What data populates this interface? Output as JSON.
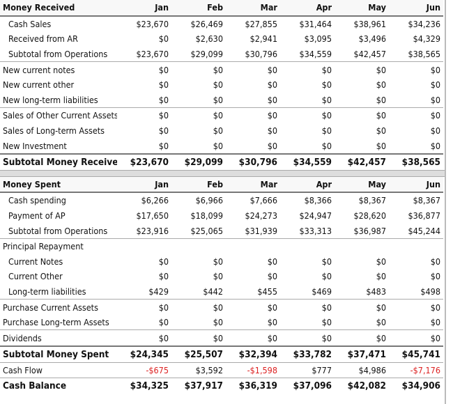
{
  "sections": [
    {
      "header": [
        "Money Received",
        "Jan",
        "Feb",
        "Mar",
        "Apr",
        "May",
        "Jun"
      ],
      "rows": [
        [
          "Cash Sales",
          "$23,670",
          "$26,469",
          "$27,855",
          "$31,464",
          "$38,961",
          "$34,236"
        ],
        [
          "Received from AR",
          "$0",
          "$2,630",
          "$2,941",
          "$3,095",
          "$3,496",
          "$4,329"
        ],
        [
          "Subtotal from Operations",
          "$23,670",
          "$29,099",
          "$30,796",
          "$34,559",
          "$42,457",
          "$38,565"
        ],
        [
          "New current notes",
          "$0",
          "$0",
          "$0",
          "$0",
          "$0",
          "$0"
        ],
        [
          "New current other",
          "$0",
          "$0",
          "$0",
          "$0",
          "$0",
          "$0"
        ],
        [
          "New long-term liabilities",
          "$0",
          "$0",
          "$0",
          "$0",
          "$0",
          "$0"
        ],
        [
          "Sales of Other Current Assets",
          "$0",
          "$0",
          "$0",
          "$0",
          "$0",
          "$0"
        ],
        [
          "Sales of Long-term Assets",
          "$0",
          "$0",
          "$0",
          "$0",
          "$0",
          "$0"
        ],
        [
          "New Investment",
          "$0",
          "$0",
          "$0",
          "$0",
          "$0",
          "$0"
        ],
        [
          "Subtotal Money Received",
          "$23,670",
          "$29,099",
          "$30,796",
          "$34,559",
          "$42,457",
          "$38,565"
        ]
      ]
    },
    {
      "header": [
        "Money Spent",
        "Jan",
        "Feb",
        "Mar",
        "Apr",
        "May",
        "Jun"
      ],
      "rows": [
        [
          "Cash spending",
          "$6,266",
          "$6,966",
          "$7,666",
          "$8,366",
          "$8,367",
          "$8,367"
        ],
        [
          "Payment of AP",
          "$17,650",
          "$18,099",
          "$24,273",
          "$24,947",
          "$28,620",
          "$36,877"
        ],
        [
          "Subtotal from Operations",
          "$23,916",
          "$25,065",
          "$31,939",
          "$33,313",
          "$36,987",
          "$45,244"
        ],
        [
          "Principal Repayment"
        ],
        [
          "Current Notes",
          "$0",
          "$0",
          "$0",
          "$0",
          "$0",
          "$0"
        ],
        [
          "Current Other",
          "$0",
          "$0",
          "$0",
          "$0",
          "$0",
          "$0"
        ],
        [
          "Long-term liabilities",
          "$429",
          "$442",
          "$455",
          "$469",
          "$483",
          "$498"
        ],
        [
          "Purchase Current Assets",
          "$0",
          "$0",
          "$0",
          "$0",
          "$0",
          "$0"
        ],
        [
          "Purchase Long-term Assets",
          "$0",
          "$0",
          "$0",
          "$0",
          "$0",
          "$0"
        ],
        [
          "Dividends",
          "$0",
          "$0",
          "$0",
          "$0",
          "$0",
          "$0"
        ],
        [
          "Subtotal Money Spent",
          "$24,345",
          "$25,507",
          "$32,394",
          "$33,782",
          "$37,471",
          "$45,741"
        ],
        [
          "Cash Flow",
          "-$675",
          "$3,592",
          "-$1,598",
          "$777",
          "$4,986",
          "-$7,176"
        ],
        [
          "Cash Balance",
          "$34,325",
          "$37,917",
          "$36,319",
          "$37,096",
          "$42,082",
          "$34,906"
        ]
      ]
    }
  ]
}
